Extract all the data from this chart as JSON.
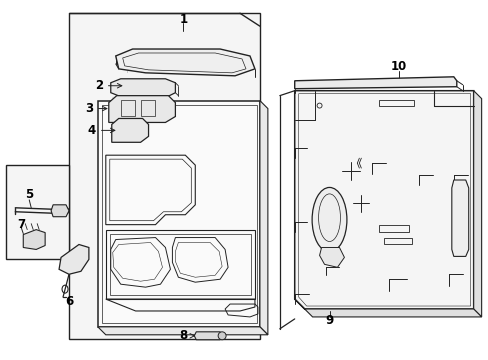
{
  "background_color": "#ffffff",
  "line_color": "#222222",
  "label_color": "#000000",
  "figsize": [
    4.89,
    3.6
  ],
  "dpi": 100,
  "label_fontsize": 8.5
}
